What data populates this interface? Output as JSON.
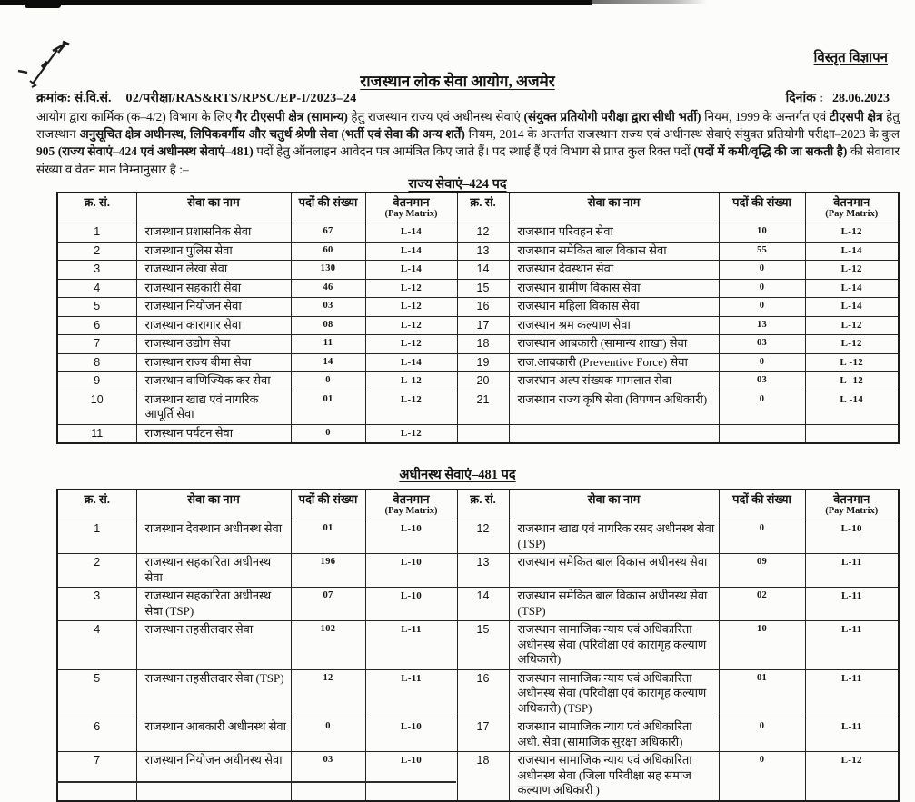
{
  "page": {
    "corner_label": "विस्तृत विज्ञापन",
    "title": "राजस्थान लोक सेवा आयोग, अजमेर",
    "ref_label": "क्रमांक: सं.वि.सं.",
    "ref_number": "02/परीक्षा/RAS&RTS/RPSC/EP-I/2023–24",
    "date_label": "दिनांक :",
    "date_value": "28.06.2023"
  },
  "intro_segments": [
    {
      "t": "आयोग द्वारा कार्मिक (क–4/2) विभाग के लिए ",
      "b": false
    },
    {
      "t": "गैर टीएसपी क्षेत्र (सामान्य)",
      "b": true
    },
    {
      "t": " हेतु राजस्थान राज्य एवं अधीनस्थ सेवाएं ",
      "b": false
    },
    {
      "t": "(संयुक्त प्रतियोगी परीक्षा द्वारा सीधी भर्ती)",
      "b": true
    },
    {
      "t": " नियम, 1999 के अन्तर्गत एवं ",
      "b": false
    },
    {
      "t": "टीएसपी क्षेत्र",
      "b": true
    },
    {
      "t": " हेतु राजस्थान ",
      "b": false
    },
    {
      "t": "अनुसूचित क्षेत्र अधीनस्थ, लिपिकवर्गीय और चतुर्थ श्रेणी सेवा (भर्ती एवं सेवा की अन्य शर्तें)",
      "b": true
    },
    {
      "t": " नियम, 2014 के अन्तर्गत राजस्थान राज्य एवं अधीनस्थ सेवाएं संयुक्त प्रतियोगी परीक्षा–2023 के कुल ",
      "b": false
    },
    {
      "t": "905 (राज्य सेवाएं–424 एवं अधीनस्थ सेवाएं–481)",
      "b": true
    },
    {
      "t": " पदों हेतु ऑनलाइन आवेदन पत्र आमंत्रित किए जाते हैं। पद स्थाई हैं एवं विभाग से प्राप्त कुल रिक्त पदों ",
      "b": false
    },
    {
      "t": "(पदों में कमी/वृद्धि की जा सकती है)",
      "b": true
    },
    {
      "t": " की सेवावार संख्या व वेतन मान निम्नानुसार है :–",
      "b": false
    }
  ],
  "tables": [
    {
      "title": "राज्य सेवाएं–424 पद",
      "headers": [
        {
          "t": "क्र. सं."
        },
        {
          "t": "सेवा का नाम"
        },
        {
          "t": "पदों की संख्या"
        },
        {
          "t": "वेतनमान",
          "sub": "(Pay Matrix)"
        },
        {
          "t": "क्र. सं."
        },
        {
          "t": "सेवा का नाम"
        },
        {
          "t": "पदों की संख्या"
        },
        {
          "t": "वेतनमान",
          "sub": "(Pay Matrix)"
        }
      ],
      "rows": [
        [
          "1",
          "राजस्थान प्रशासनिक सेवा",
          "67",
          "L-14",
          "12",
          "राजस्थान परिवहन सेवा",
          "10",
          "L-12"
        ],
        [
          "2",
          "राजस्थान पुलिस सेवा",
          "60",
          "L-14",
          "13",
          "राजस्थान समेकित बाल विकास सेवा",
          "55",
          "L-14"
        ],
        [
          "3",
          "राजस्थान लेखा सेवा",
          "130",
          "L-14",
          "14",
          "राजस्थान देवस्थान सेवा",
          "0",
          "L-12"
        ],
        [
          "4",
          "राजस्थान सहकारी सेवा",
          "46",
          "L-12",
          "15",
          "राजस्थान ग्रामीण विकास सेवा",
          "0",
          "L-14"
        ],
        [
          "5",
          "राजस्थान नियोजन सेवा",
          "03",
          "L-12",
          "16",
          "राजस्थान महिला विकास सेवा",
          "0",
          "L-14"
        ],
        [
          "6",
          "राजस्थान कारागार सेवा",
          "08",
          "L-12",
          "17",
          "राजस्थान श्रम कल्याण सेवा",
          "13",
          "L-12"
        ],
        [
          "7",
          "राजस्थान उद्योग सेवा",
          "11",
          "L-12",
          "18",
          "राजस्थान आबकारी (सामान्य शाखा) सेवा",
          "03",
          "L-12"
        ],
        [
          "8",
          "राजस्थान राज्य बीमा सेवा",
          "14",
          "L-14",
          "19",
          "राज.आबकारी (Preventive Force) सेवा",
          "0",
          "L -12"
        ],
        [
          "9",
          "राजस्थान वाणिज्यिक कर सेवा",
          "0",
          "L-12",
          "20",
          "राजस्थान अल्प संख्यक मामलात सेवा",
          "03",
          "L -12"
        ],
        [
          "10",
          "राजस्थान खाद्य एवं नागरिक आपूर्ति सेवा",
          "01",
          "L-12",
          "21",
          "राजस्थान राज्य कृषि सेवा (विपणन अधिकारी)",
          "0",
          "L -14"
        ],
        [
          "11",
          "राजस्थान पर्यटन सेवा",
          "0",
          "L-12",
          "",
          "",
          "",
          ""
        ]
      ]
    },
    {
      "title": "अधीनस्थ सेवाएं–481 पद",
      "headers": [
        {
          "t": "क्र. सं."
        },
        {
          "t": "सेवा का नाम"
        },
        {
          "t": "पदों की संख्या"
        },
        {
          "t": "वेतनमान",
          "sub": "(Pay Matrix)"
        },
        {
          "t": "क्र. सं."
        },
        {
          "t": "सेवा का नाम"
        },
        {
          "t": "पदों की संख्या"
        },
        {
          "t": "वेतनमान",
          "sub": "(Pay Matrix)"
        }
      ],
      "rows": [
        [
          "1",
          "राजस्थान देवस्थान अधीनस्थ सेवा",
          "01",
          "L-10",
          "12",
          "राजस्थान खाद्य एवं नागरिक रसद अधीनस्थ सेवा (TSP)",
          "0",
          "L-10"
        ],
        [
          "2",
          "राजस्थान सहकारिता अधीनस्थ सेवा",
          "196",
          "L-10",
          "13",
          "राजस्थान समेकित बाल विकास अधीनस्थ सेवा",
          "09",
          "L-11"
        ],
        [
          "3",
          "राजस्थान सहकारिता अधीनस्थ सेवा (TSP)",
          "07",
          "L-10",
          "14",
          "राजस्थान समेकित बाल विकास अधीनस्थ सेवा (TSP)",
          "02",
          "L-11"
        ],
        [
          "4",
          "राजस्थान तहसीलदार सेवा",
          "102",
          "L-11",
          "15",
          "राजस्थान सामाजिक न्याय एवं अधिकारिता अधीनस्थ सेवा (परिवीक्षा एवं कारागृह कल्याण अधिकारी)",
          "10",
          "L-11"
        ],
        [
          "5",
          "राजस्थान तहसीलदार सेवा (TSP)",
          "12",
          "L-11",
          "16",
          "राजस्थान सामाजिक न्याय एवं अधिकारिता अधीनस्थ सेवा (परिवीक्षा एवं कारागृह कल्याण अधिकारी) (TSP)",
          "01",
          "L-11"
        ],
        [
          "6",
          "राजस्थान आबकारी अधीनस्थ सेवा",
          "0",
          "L-10",
          "17",
          "राजस्थान सामाजिक न्याय एवं अधिकारिता अधी. सेवा (सामाजिक सुरक्षा अधिकारी)",
          "0",
          "L-11"
        ],
        [
          "7",
          "राजस्थान नियोजन अधीनस्थ सेवा",
          "03",
          "L-10",
          "18",
          "राजस्थान सामाजिक न्याय एवं अधिकारिता अधीनस्थ सेवा (जिला परिवीक्षा सह समाज कल्याण अधिकारी )",
          "0",
          "L-12"
        ]
      ]
    }
  ]
}
